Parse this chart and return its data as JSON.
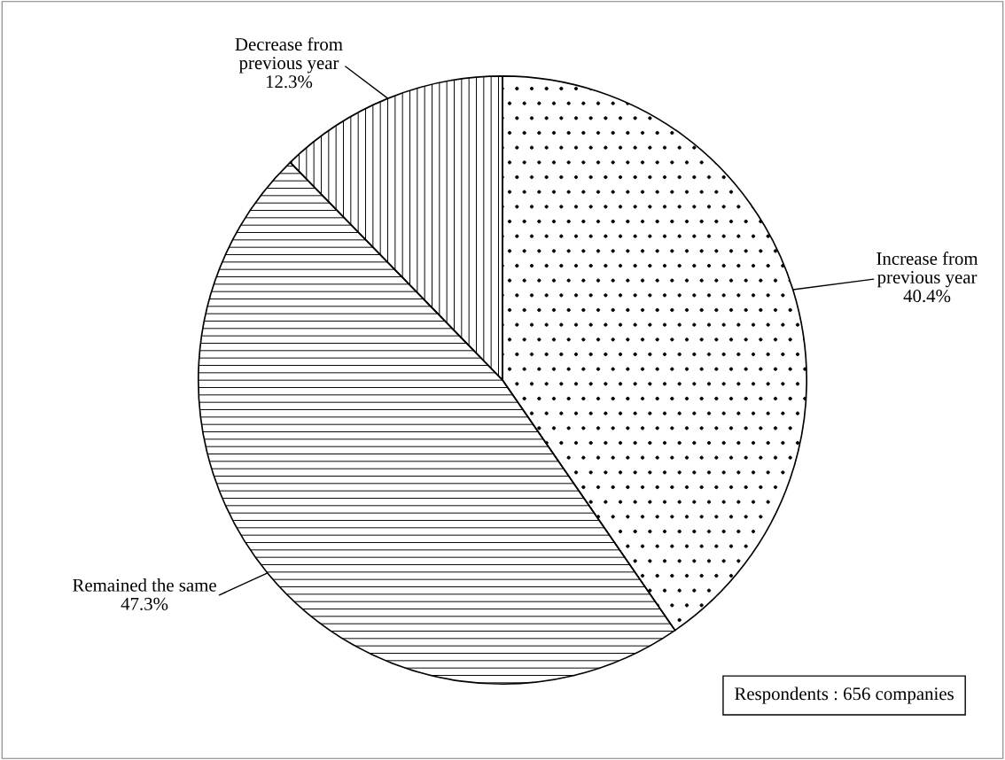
{
  "chart_data": {
    "type": "pie",
    "categories": [
      "Increase from\nprevious year",
      "Remained the same",
      "Decrease from\nprevious year"
    ],
    "values": [
      40.4,
      47.3,
      12.3
    ],
    "value_labels": [
      "40.4%",
      "47.3%",
      "12.3%"
    ],
    "annotations": [
      "Respondents : 656 companies"
    ]
  }
}
